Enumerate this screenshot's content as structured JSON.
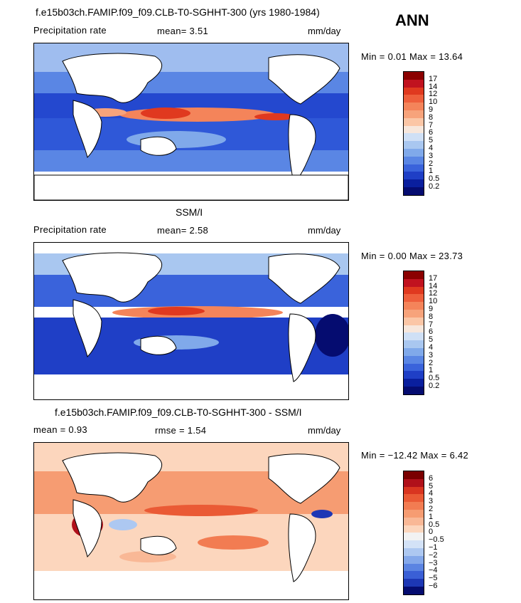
{
  "season": "ANN",
  "panels": [
    {
      "title": "f.e15b03ch.FAMIP.f09_f09.CLB-T0-SGHHT-300 (yrs 1980-1984)",
      "left_label": "Precipitation rate",
      "center_label": "mean=   3.51",
      "units": "mm/day",
      "minmax": "Min =   0.01  Max =   13.64",
      "levels": [
        "17",
        "14",
        "12",
        "10",
        "9",
        "8",
        "7",
        "6",
        "5",
        "4",
        "3",
        "2",
        "1",
        "0.5",
        "0.2"
      ],
      "colors": [
        "#8b0000",
        "#c1121f",
        "#e0391f",
        "#ee5f3c",
        "#f4845a",
        "#f7a37b",
        "#fbc6a6",
        "#f7e7dc",
        "#cfe0f6",
        "#a9c7f0",
        "#80a9ea",
        "#5a86e4",
        "#3a63db",
        "#1f3fc6",
        "#0a1f9e",
        "#050c70"
      ]
    },
    {
      "title": "SSM/I",
      "left_label": "Precipitation rate",
      "center_label": "mean=   2.58",
      "units": "mm/day",
      "minmax": "Min =   0.00  Max =   23.73",
      "levels": [
        "17",
        "14",
        "12",
        "10",
        "9",
        "8",
        "7",
        "6",
        "5",
        "4",
        "3",
        "2",
        "1",
        "0.5",
        "0.2"
      ],
      "colors": [
        "#8b0000",
        "#c1121f",
        "#e0391f",
        "#ee5f3c",
        "#f4845a",
        "#f7a37b",
        "#fbc6a6",
        "#f7e7dc",
        "#cfe0f6",
        "#a9c7f0",
        "#80a9ea",
        "#5a86e4",
        "#3a63db",
        "#1f3fc6",
        "#0a1f9e",
        "#050c70"
      ]
    },
    {
      "title": "f.e15b03ch.FAMIP.f09_f09.CLB-T0-SGHHT-300 - SSM/I",
      "left_label": "mean =   0.93",
      "center_label": "rmse =   1.54",
      "units": "mm/day",
      "minmax": "Min = −12.42  Max =   6.42",
      "levels": [
        "6",
        "5",
        "4",
        "3",
        "2",
        "1",
        "0.5",
        "0",
        "−0.5",
        "−1",
        "−2",
        "−3",
        "−4",
        "−5",
        "−6"
      ],
      "colors": [
        "#7a0000",
        "#b0101a",
        "#d93520",
        "#ea5a35",
        "#f27c52",
        "#f69c72",
        "#f9b896",
        "#fcd6bd",
        "#f2f2f2",
        "#d3e2f7",
        "#adc8f1",
        "#84a8ea",
        "#5b84e2",
        "#3a5fd6",
        "#1d37b5",
        "#050c70"
      ]
    }
  ],
  "chart_data": {
    "type": "heatmap",
    "season": "ANN",
    "panels": [
      {
        "name": "f.e15b03ch.FAMIP.f09_f09.CLB-T0-SGHHT-300 (yrs 1980-1984)",
        "variable": "Precipitation rate",
        "units": "mm/day",
        "mean": 3.51,
        "min": 0.01,
        "max": 13.64,
        "contour_levels": [
          0.2,
          0.5,
          1,
          2,
          3,
          4,
          5,
          6,
          7,
          8,
          9,
          10,
          12,
          14,
          17
        ]
      },
      {
        "name": "SSM/I",
        "variable": "Precipitation rate",
        "units": "mm/day",
        "mean": 2.58,
        "min": 0.0,
        "max": 23.73,
        "contour_levels": [
          0.2,
          0.5,
          1,
          2,
          3,
          4,
          5,
          6,
          7,
          8,
          9,
          10,
          12,
          14,
          17
        ]
      },
      {
        "name": "f.e15b03ch.FAMIP.f09_f09.CLB-T0-SGHHT-300 - SSM/I",
        "units": "mm/day",
        "mean": 0.93,
        "rmse": 1.54,
        "min": -12.42,
        "max": 6.42,
        "contour_levels": [
          -6,
          -5,
          -4,
          -3,
          -2,
          -1,
          -0.5,
          0,
          0.5,
          1,
          2,
          3,
          4,
          5,
          6
        ]
      }
    ]
  }
}
